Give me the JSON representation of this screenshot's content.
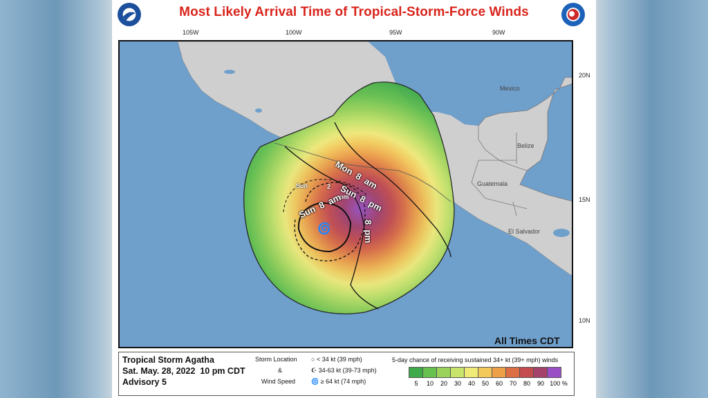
{
  "title": "Most Likely Arrival Time of Tropical-Storm-Force Winds",
  "logos": {
    "left": "noaa-logo",
    "right": "nws-logo"
  },
  "longitudes": [
    "105W",
    "100W",
    "95W",
    "90W"
  ],
  "latitudes": [
    "20N",
    "15N",
    "10N"
  ],
  "places": {
    "mexico": "Mexico",
    "belize": "Belize",
    "guatemala": "Guatemala",
    "el_salvador": "El Salvador"
  },
  "time_labels": {
    "mon_8am": "Mon  8  am",
    "sun_8pm": "Sun  8  pm",
    "sun_2pm_a": "Sun",
    "sun_2pm_b": "2",
    "sun_2pm_c": "pm",
    "sun_8am": "Sun  8  am",
    "sun_small": "Sun",
    "pm_8": "8  pm"
  },
  "timezone_note": "All Times CDT",
  "storm": {
    "name": "Tropical Storm Agatha",
    "datetime": "Sat. May. 28, 2022  10 pm CDT",
    "advisory": "Advisory 5"
  },
  "storm_location_legend": {
    "label1": "Storm Location",
    "amp": "&",
    "label2": "Wind Speed",
    "items": [
      "< 34 kt (39 mph)",
      "34-63 kt (39-73 mph)",
      "≥ 64 kt (74 mph)"
    ]
  },
  "probability_legend": {
    "caption": "5-day chance of receiving sustained 34+ kt (39+ mph) winds",
    "levels": [
      "5",
      "10",
      "20",
      "30",
      "40",
      "50",
      "60",
      "70",
      "80",
      "90",
      "100 %"
    ],
    "colors": [
      "#3faa49",
      "#66c14e",
      "#9bd35a",
      "#c9e46b",
      "#f0ea79",
      "#f4c95b",
      "#eea049",
      "#dc6e45",
      "#c44b4f",
      "#a5426b",
      "#9a4fc4"
    ]
  },
  "colors": {
    "ocean": "#6f9fcb",
    "land": "#cfcfcf",
    "title": "#d9241c"
  }
}
